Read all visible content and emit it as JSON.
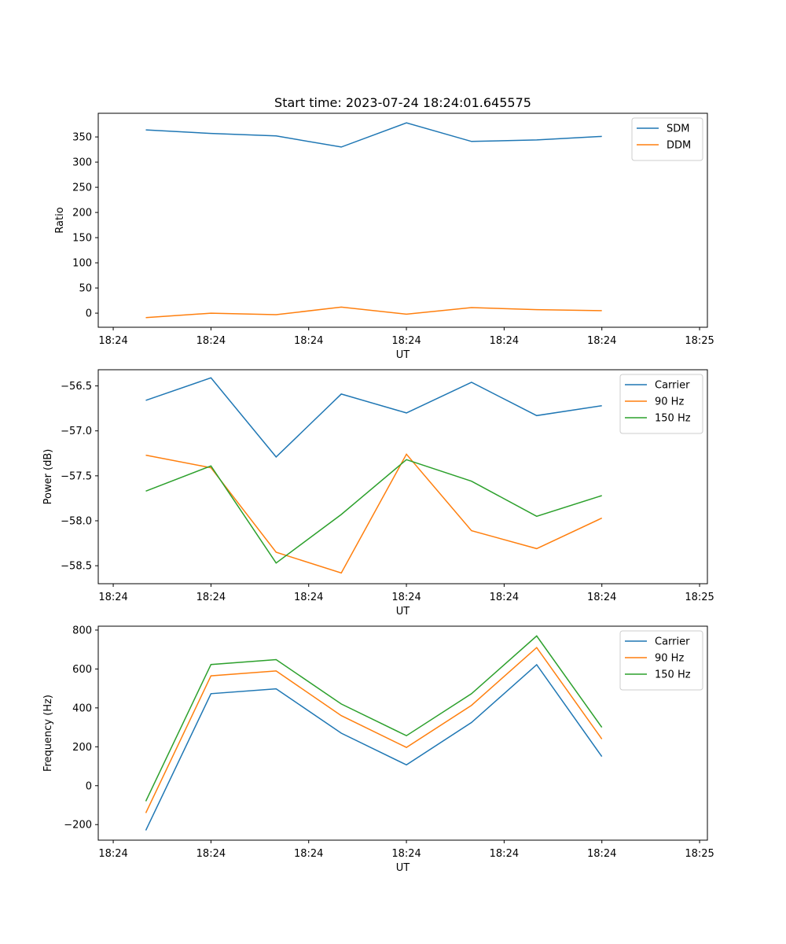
{
  "title": "Start time: 2023-07-24 18:24:01.645575",
  "chart_data": [
    {
      "type": "line",
      "title": "Start time: 2023-07-24 18:24:01.645575",
      "xlabel": "UT",
      "ylabel": "Ratio",
      "xlim": [
        -0.73,
        8.62
      ],
      "ylim": [
        -28,
        397
      ],
      "x_ticks": [
        {
          "v": -0.5,
          "label": "18:24"
        },
        {
          "v": 1.0,
          "label": "18:24"
        },
        {
          "v": 2.5,
          "label": "18:24"
        },
        {
          "v": 4.0,
          "label": "18:24"
        },
        {
          "v": 5.5,
          "label": "18:24"
        },
        {
          "v": 7.0,
          "label": "18:24"
        },
        {
          "v": 8.5,
          "label": "18:25"
        }
      ],
      "y_ticks": [
        0,
        50,
        100,
        150,
        200,
        250,
        300,
        350
      ],
      "legend": "top-right",
      "x": [
        0,
        1,
        2,
        3,
        4,
        5,
        6,
        7
      ],
      "series": [
        {
          "name": "SDM",
          "color": "#1f77b4",
          "values": [
            364,
            357,
            352,
            330,
            378,
            341,
            344,
            351
          ]
        },
        {
          "name": "DDM",
          "color": "#ff7f0e",
          "values": [
            -9,
            0,
            -3,
            12,
            -2,
            11,
            7,
            5
          ]
        }
      ]
    },
    {
      "type": "line",
      "xlabel": "UT",
      "ylabel": "Power (dB)",
      "xlim": [
        -0.73,
        8.62
      ],
      "ylim": [
        -58.7,
        -56.32
      ],
      "x_ticks": [
        {
          "v": -0.5,
          "label": "18:24"
        },
        {
          "v": 1.0,
          "label": "18:24"
        },
        {
          "v": 2.5,
          "label": "18:24"
        },
        {
          "v": 4.0,
          "label": "18:24"
        },
        {
          "v": 5.5,
          "label": "18:24"
        },
        {
          "v": 7.0,
          "label": "18:24"
        },
        {
          "v": 8.5,
          "label": "18:25"
        }
      ],
      "y_ticks": [
        -58.5,
        -58.0,
        -57.5,
        -57.0,
        -56.5
      ],
      "y_tick_labels": [
        "−58.5",
        "−58.0",
        "−57.5",
        "−57.0",
        "−56.5"
      ],
      "legend": "top-right",
      "x": [
        0,
        1,
        2,
        3,
        4,
        5,
        6,
        7
      ],
      "series": [
        {
          "name": "Carrier",
          "color": "#1f77b4",
          "values": [
            -56.66,
            -56.41,
            -57.29,
            -56.59,
            -56.8,
            -56.46,
            -56.83,
            -56.72
          ]
        },
        {
          "name": "90 Hz",
          "color": "#ff7f0e",
          "values": [
            -57.27,
            -57.41,
            -58.35,
            -58.58,
            -57.26,
            -58.11,
            -58.31,
            -57.97
          ]
        },
        {
          "name": "150 Hz",
          "color": "#2ca02c",
          "values": [
            -57.67,
            -57.39,
            -58.47,
            -57.93,
            -57.32,
            -57.56,
            -57.95,
            -57.72
          ]
        }
      ]
    },
    {
      "type": "line",
      "xlabel": "UT",
      "ylabel": "Frequency (Hz)",
      "xlim": [
        -0.73,
        8.62
      ],
      "ylim": [
        -280,
        820
      ],
      "x_ticks": [
        {
          "v": -0.5,
          "label": "18:24"
        },
        {
          "v": 1.0,
          "label": "18:24"
        },
        {
          "v": 2.5,
          "label": "18:24"
        },
        {
          "v": 4.0,
          "label": "18:24"
        },
        {
          "v": 5.5,
          "label": "18:24"
        },
        {
          "v": 7.0,
          "label": "18:24"
        },
        {
          "v": 8.5,
          "label": "18:25"
        }
      ],
      "y_ticks": [
        -200,
        0,
        200,
        400,
        600,
        800
      ],
      "y_tick_labels": [
        "−200",
        "0",
        "200",
        "400",
        "600",
        "800"
      ],
      "legend": "top-right",
      "x": [
        0,
        1,
        2,
        3,
        4,
        5,
        6,
        7
      ],
      "series": [
        {
          "name": "Carrier",
          "color": "#1f77b4",
          "values": [
            -230,
            473,
            498,
            270,
            107,
            325,
            622,
            150
          ]
        },
        {
          "name": "90 Hz",
          "color": "#ff7f0e",
          "values": [
            -140,
            565,
            590,
            360,
            197,
            413,
            710,
            240
          ]
        },
        {
          "name": "150 Hz",
          "color": "#2ca02c",
          "values": [
            -80,
            623,
            648,
            420,
            257,
            473,
            770,
            300
          ]
        }
      ]
    }
  ]
}
